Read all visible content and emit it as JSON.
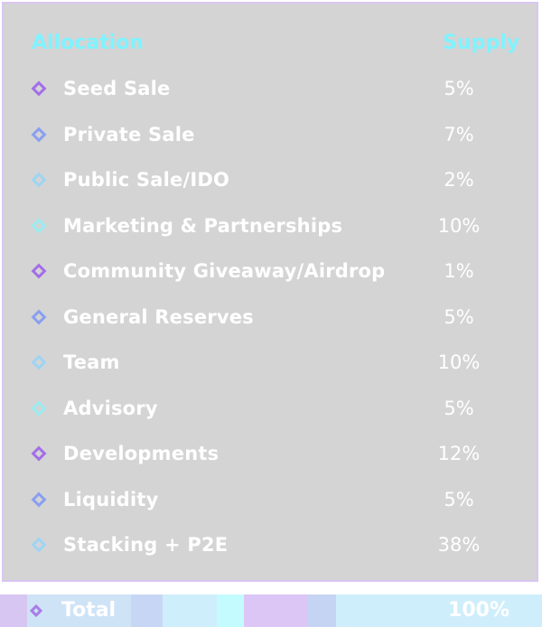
{
  "colors": {
    "header": "#7ff3ff",
    "card_bg": "#d4d4d4",
    "card_border": "#d8c6f2",
    "text": "#ffffff"
  },
  "table": {
    "header": {
      "allocation": "Allocation",
      "supply": "Supply"
    },
    "rows": [
      {
        "label": "Seed Sale",
        "value": "5%",
        "icon": "diamond-icon",
        "icon_color": "#a36ee8"
      },
      {
        "label": "Private Sale",
        "value": "7%",
        "icon": "diamond-icon",
        "icon_color": "#8a9ff0"
      },
      {
        "label": "Public Sale/IDO",
        "value": "2%",
        "icon": "diamond-icon",
        "icon_color": "#9fd4f3"
      },
      {
        "label": "Marketing & Partnerships",
        "value": "10%",
        "icon": "diamond-icon",
        "icon_color": "#9cecf0"
      },
      {
        "label": "Community Giveaway/Airdrop",
        "value": "1%",
        "icon": "diamond-icon",
        "icon_color": "#a36ee8"
      },
      {
        "label": "General Reserves",
        "value": "5%",
        "icon": "diamond-icon",
        "icon_color": "#8a9ff0"
      },
      {
        "label": "Team",
        "value": "10%",
        "icon": "diamond-icon",
        "icon_color": "#9fd4f3"
      },
      {
        "label": "Advisory",
        "value": "5%",
        "icon": "diamond-icon",
        "icon_color": "#9cecf0"
      },
      {
        "label": "Developments",
        "value": "12%",
        "icon": "diamond-icon",
        "icon_color": "#a36ee8"
      },
      {
        "label": "Liquidity",
        "value": "5%",
        "icon": "diamond-icon",
        "icon_color": "#8a9ff0"
      },
      {
        "label": "Stacking + P2E",
        "value": "38%",
        "icon": "diamond-icon",
        "icon_color": "#9fd4f3"
      }
    ],
    "total": {
      "label": "Total",
      "value": "100%",
      "icon": "diamond-icon",
      "icon_color": "#a77ee8"
    }
  },
  "footer_segments": [
    {
      "start": 0,
      "end": 30,
      "color": "#d8c6f2"
    },
    {
      "start": 30,
      "end": 145,
      "color": "#cfe3f7"
    },
    {
      "start": 145,
      "end": 180,
      "color": "#c8d6f5"
    },
    {
      "start": 180,
      "end": 240,
      "color": "#cfeefb"
    },
    {
      "start": 240,
      "end": 270,
      "color": "#c4fbff"
    },
    {
      "start": 270,
      "end": 340,
      "color": "#dcc6f5"
    },
    {
      "start": 340,
      "end": 372,
      "color": "#c6d4f3"
    },
    {
      "start": 372,
      "end": 600,
      "color": "#cfeefb"
    }
  ]
}
